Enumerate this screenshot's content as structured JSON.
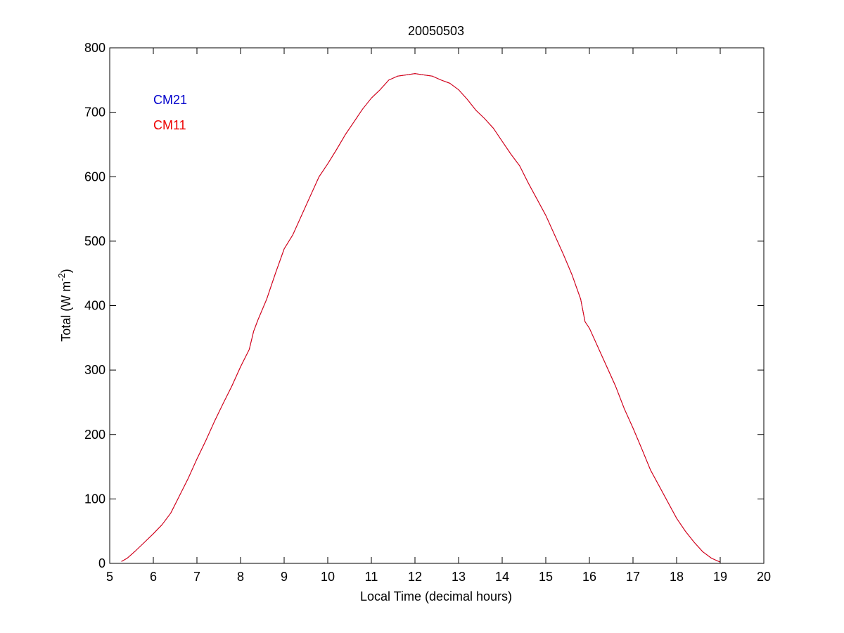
{
  "chart_data": {
    "type": "line",
    "title": "20050503",
    "xlabel": "Local Time (decimal hours)",
    "ylabel": "Total (W m",
    "ylabel_superscript": "-2",
    "ylabel_suffix": ")",
    "xlim": [
      5,
      20
    ],
    "ylim": [
      0,
      800
    ],
    "xticks": [
      5,
      6,
      7,
      8,
      9,
      10,
      11,
      12,
      13,
      14,
      15,
      16,
      17,
      18,
      19,
      20
    ],
    "yticks": [
      0,
      100,
      200,
      300,
      400,
      500,
      600,
      700,
      800
    ],
    "grid": false,
    "legend": {
      "placement": "top-left",
      "entries": [
        "CM21",
        "CM11"
      ]
    },
    "series": [
      {
        "name": "CM21",
        "color": "#0000cc",
        "x": [
          5.27,
          5.4,
          5.6,
          5.8,
          6.0,
          6.2,
          6.4,
          6.6,
          6.8,
          7.0,
          7.2,
          7.4,
          7.6,
          7.8,
          8.0,
          8.2,
          8.3,
          8.4,
          8.6,
          8.8,
          9.0,
          9.2,
          9.4,
          9.6,
          9.8,
          10.0,
          10.2,
          10.4,
          10.6,
          10.8,
          11.0,
          11.2,
          11.4,
          11.6,
          11.8,
          12.0,
          12.2,
          12.4,
          12.6,
          12.8,
          13.0,
          13.2,
          13.4,
          13.6,
          13.8,
          14.0,
          14.2,
          14.4,
          14.6,
          14.8,
          15.0,
          15.2,
          15.4,
          15.6,
          15.8,
          15.9,
          16.0,
          16.2,
          16.4,
          16.6,
          16.8,
          17.0,
          17.2,
          17.4,
          17.6,
          17.8,
          18.0,
          18.2,
          18.4,
          18.6,
          18.8,
          19.0
        ],
        "y": [
          3,
          8,
          20,
          33,
          46,
          60,
          78,
          105,
          132,
          162,
          190,
          220,
          248,
          275,
          305,
          332,
          360,
          378,
          410,
          450,
          488,
          510,
          540,
          570,
          600,
          620,
          642,
          665,
          685,
          705,
          722,
          735,
          750,
          756,
          758,
          760,
          758,
          756,
          750,
          745,
          735,
          720,
          703,
          690,
          675,
          655,
          635,
          617,
          590,
          565,
          540,
          510,
          480,
          448,
          410,
          375,
          365,
          335,
          305,
          275,
          240,
          210,
          178,
          145,
          120,
          95,
          70,
          50,
          33,
          18,
          8,
          2
        ]
      },
      {
        "name": "CM11",
        "color": "#ee0000",
        "x": [
          5.27,
          5.4,
          5.6,
          5.8,
          6.0,
          6.2,
          6.4,
          6.6,
          6.8,
          7.0,
          7.2,
          7.4,
          7.6,
          7.8,
          8.0,
          8.2,
          8.3,
          8.4,
          8.6,
          8.8,
          9.0,
          9.2,
          9.4,
          9.6,
          9.8,
          10.0,
          10.2,
          10.4,
          10.6,
          10.8,
          11.0,
          11.2,
          11.4,
          11.6,
          11.8,
          12.0,
          12.2,
          12.4,
          12.6,
          12.8,
          13.0,
          13.2,
          13.4,
          13.6,
          13.8,
          14.0,
          14.2,
          14.4,
          14.6,
          14.8,
          15.0,
          15.2,
          15.4,
          15.6,
          15.8,
          15.9,
          16.0,
          16.2,
          16.4,
          16.6,
          16.8,
          17.0,
          17.2,
          17.4,
          17.6,
          17.8,
          18.0,
          18.2,
          18.4,
          18.6,
          18.8,
          19.0
        ],
        "y": [
          3,
          8,
          20,
          33,
          46,
          60,
          78,
          105,
          132,
          162,
          190,
          220,
          248,
          275,
          305,
          332,
          360,
          378,
          410,
          450,
          488,
          510,
          540,
          570,
          600,
          620,
          642,
          665,
          685,
          705,
          722,
          735,
          750,
          756,
          758,
          760,
          758,
          756,
          750,
          745,
          735,
          720,
          703,
          690,
          675,
          655,
          635,
          617,
          590,
          565,
          540,
          510,
          480,
          448,
          410,
          375,
          365,
          335,
          305,
          275,
          240,
          210,
          178,
          145,
          120,
          95,
          70,
          50,
          33,
          18,
          8,
          2
        ]
      }
    ]
  }
}
